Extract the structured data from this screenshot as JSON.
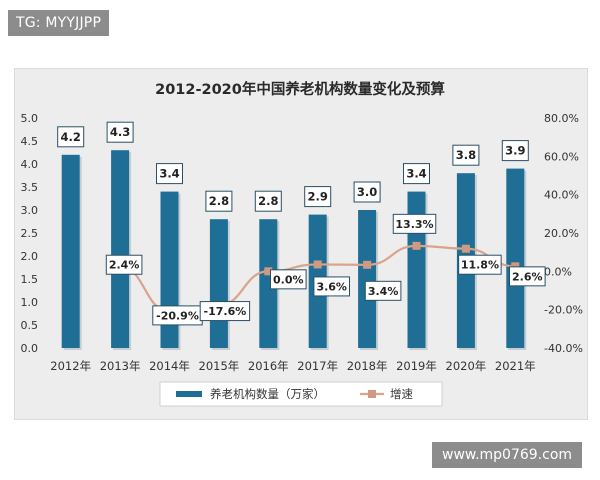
{
  "watermarks": {
    "top": "TG: MYYJJPP",
    "bottom": "www.mp0769.com"
  },
  "chart_data": {
    "type": "bar+line",
    "title": "2012-2020年中国养老机构数量变化及预算",
    "categories": [
      "2012年",
      "2013年",
      "2014年",
      "2015年",
      "2016年",
      "2017年",
      "2018年",
      "2019年",
      "2020年",
      "2021年"
    ],
    "series": [
      {
        "name": "养老机构数量（万家）",
        "type": "bar",
        "axis": "left",
        "values": [
          4.2,
          4.3,
          3.4,
          2.8,
          2.8,
          2.9,
          3.0,
          3.4,
          3.8,
          3.9
        ],
        "labels": [
          "4.2",
          "4.3",
          "3.4",
          "2.8",
          "2.8",
          "2.9",
          "3.0",
          "3.4",
          "3.8",
          "3.9"
        ],
        "color": "#1f6e96"
      },
      {
        "name": "增速",
        "type": "line",
        "axis": "right",
        "values": [
          null,
          2.4,
          -20.9,
          -17.6,
          0.0,
          3.6,
          3.4,
          13.3,
          11.8,
          2.6
        ],
        "labels": [
          null,
          "2.4%",
          "-20.9%",
          "-17.6%",
          "0.0%",
          "3.6%",
          "3.4%",
          "13.3%",
          "11.8%",
          "2.6%"
        ],
        "color": "#d9a38c"
      }
    ],
    "left_axis": {
      "ylim": [
        0,
        5
      ],
      "ticks": [
        "0.0",
        "0.5",
        "1.0",
        "1.5",
        "2.0",
        "2.5",
        "3.0",
        "3.5",
        "4.0",
        "4.5",
        "5.0"
      ]
    },
    "right_axis": {
      "ylim": [
        -40,
        80
      ],
      "ticks": [
        "-40.0%",
        "-20.0%",
        "0.0%",
        "20.0%",
        "40.0%",
        "60.0%",
        "80.0%"
      ]
    },
    "grid": false,
    "legend_position": "bottom"
  }
}
